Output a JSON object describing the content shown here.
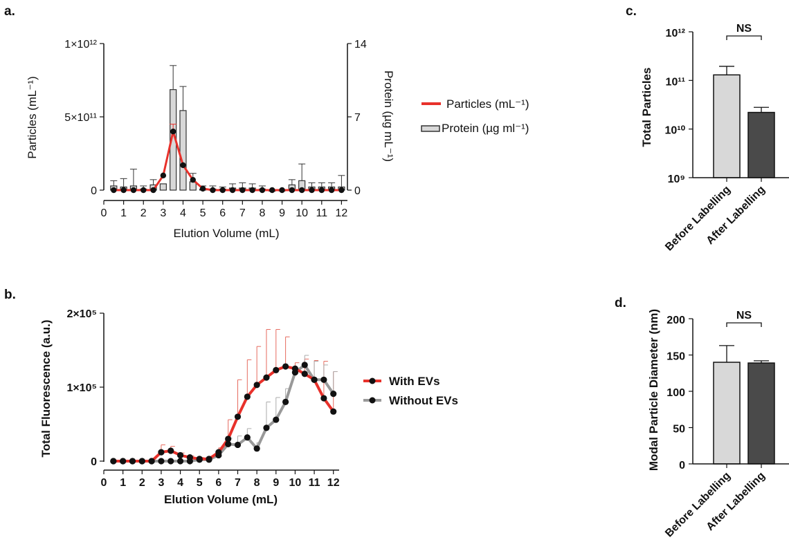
{
  "colors": {
    "red": "#e8312b",
    "grey": "#999999",
    "bar_light": "#d8d8d8",
    "bar_dark": "#4a4a4a",
    "errorbar_red": "#e66a5e",
    "errorbar_grey": "#aaaaaa"
  },
  "chart_data": [
    {
      "panel": "a.",
      "type": "line+bar",
      "xlabel": "Elution Volume (mL)",
      "ylabel_left": "Particles (mL⁻¹)",
      "ylabel_right": "Protein (µg mL⁻¹)",
      "x_ticks": [
        "0",
        "1",
        "2",
        "3",
        "4",
        "5",
        "6",
        "7",
        "8",
        "9",
        "10",
        "11",
        "12"
      ],
      "y_ticks_left": [
        "0",
        "5×10¹¹",
        "1×10¹²"
      ],
      "y_ticks_right": [
        "0",
        "7",
        "14"
      ],
      "xlim": [
        0,
        12.3
      ],
      "ylim_left": [
        0,
        1000000000000.0
      ],
      "ylim_right": [
        0,
        14
      ],
      "legend": [
        "Particles (mL⁻¹)",
        "Protein (µg ml⁻¹)"
      ],
      "legend_position": "right",
      "particles": {
        "name": "Particles (mL⁻¹)",
        "x": [
          0.5,
          1,
          1.5,
          2,
          2.5,
          3,
          3.5,
          4,
          4.5,
          5,
          5.5,
          6,
          6.5,
          7,
          7.5,
          8,
          8.5,
          9,
          9.5,
          10,
          10.5,
          11,
          11.5,
          12
        ],
        "y": [
          0,
          0,
          0,
          0,
          0,
          100000000000.0,
          400000000000.0,
          170000000000.0,
          70000000000.0,
          10000000000.0,
          0,
          0,
          0,
          0,
          0,
          0,
          0,
          0,
          0,
          0,
          0,
          0,
          0,
          0
        ],
        "err": [
          0,
          0,
          0,
          0,
          0,
          0,
          50000000000.0,
          0,
          0,
          0,
          0,
          0,
          0,
          0,
          0,
          0,
          0,
          0,
          0,
          0,
          0,
          0,
          0,
          0
        ]
      },
      "protein": {
        "name": "Protein (µg ml⁻¹)",
        "x": [
          0.5,
          1,
          1.5,
          2,
          2.5,
          3,
          3.5,
          4,
          4.5,
          5,
          5.5,
          6,
          6.5,
          7,
          7.5,
          8,
          8.5,
          9,
          9.5,
          10,
          10.5,
          11,
          11.5,
          12
        ],
        "y": [
          0.4,
          0.3,
          0.4,
          0.1,
          0.5,
          0.6,
          9.6,
          7.6,
          0.8,
          0.1,
          0.1,
          0.1,
          0.2,
          0.2,
          0.2,
          0.1,
          -0.1,
          0,
          0.5,
          0.9,
          0.3,
          0.3,
          0.3,
          0.3
        ],
        "err": [
          0.5,
          0.8,
          1.6,
          0.3,
          0.5,
          0,
          2.3,
          2.3,
          0.8,
          0.3,
          0.3,
          0.2,
          0.4,
          0.5,
          0.4,
          0.3,
          0.1,
          0,
          0.5,
          1.6,
          0.4,
          0.4,
          0.4,
          1.1
        ]
      }
    },
    {
      "panel": "b.",
      "type": "line",
      "xlabel": "Elution Volume (mL)",
      "ylabel": "Total Fluorescence (a.u.)",
      "x_ticks": [
        "0",
        "1",
        "2",
        "3",
        "4",
        "5",
        "6",
        "7",
        "8",
        "9",
        "10",
        "11",
        "12"
      ],
      "y_ticks": [
        "0",
        "1×10⁵",
        "2×10⁵"
      ],
      "xlim": [
        0,
        12.3
      ],
      "ylim": [
        0,
        200000
      ],
      "legend_position": "right",
      "series": [
        {
          "name": "With EVs",
          "x": [
            0.5,
            1,
            1.5,
            2,
            2.5,
            3,
            3.5,
            4,
            4.5,
            5,
            5.5,
            6,
            6.5,
            7,
            7.5,
            8,
            8.5,
            9,
            9.5,
            10,
            10.5,
            11,
            11.5,
            12
          ],
          "y": [
            0,
            0,
            0,
            0,
            0,
            12000,
            14000,
            8000,
            5000,
            3000,
            3000,
            12000,
            30000,
            60000,
            87000,
            103000,
            113000,
            123000,
            128000,
            125000,
            118000,
            110000,
            85000,
            67000
          ],
          "err": [
            0,
            0,
            0,
            0,
            0,
            10000,
            6000,
            3000,
            2000,
            2000,
            2000,
            6000,
            26000,
            50000,
            50000,
            52000,
            65000,
            55000,
            40000,
            8000,
            20000,
            26000,
            50000,
            54000
          ]
        },
        {
          "name": "Without EVs",
          "x": [
            0.5,
            1,
            1.5,
            2,
            2.5,
            3,
            3.5,
            4,
            4.5,
            5,
            5.5,
            6,
            6.5,
            7,
            7.5,
            8,
            8.5,
            9,
            9.5,
            10,
            10.5,
            11,
            11.5,
            12
          ],
          "y": [
            0,
            0,
            0,
            0,
            0,
            0,
            0,
            0,
            0,
            2000,
            2000,
            8000,
            23000,
            22000,
            32000,
            17000,
            45000,
            56000,
            80000,
            120000,
            130000,
            110000,
            110000,
            91000
          ],
          "err": [
            0,
            0,
            0,
            0,
            0,
            0,
            0,
            0,
            0,
            1000,
            1000,
            5000,
            8000,
            12000,
            12000,
            8000,
            35000,
            30000,
            18000,
            5000,
            13000,
            25000,
            20000,
            30000
          ]
        }
      ]
    },
    {
      "panel": "c.",
      "type": "bar",
      "ylabel": "Total Particles",
      "yscale": "log",
      "ylim": [
        1000000000.0,
        1000000000000.0
      ],
      "y_ticks": [
        "10⁹",
        "10¹⁰",
        "10¹¹",
        "10¹²"
      ],
      "categories": [
        "Before Labelling",
        "After Labelling"
      ],
      "values": [
        130000000000.0,
        22000000000.0
      ],
      "err": [
        65000000000.0,
        6000000000.0
      ],
      "annotation": "NS"
    },
    {
      "panel": "d.",
      "type": "bar",
      "ylabel": "Modal Particle Diameter (nm)",
      "ylim": [
        0,
        200
      ],
      "y_ticks": [
        "0",
        "50",
        "100",
        "150",
        "200"
      ],
      "categories": [
        "Before Labelling",
        "After Labelling"
      ],
      "values": [
        140,
        139
      ],
      "err": [
        23,
        3
      ],
      "annotation": "NS"
    }
  ]
}
